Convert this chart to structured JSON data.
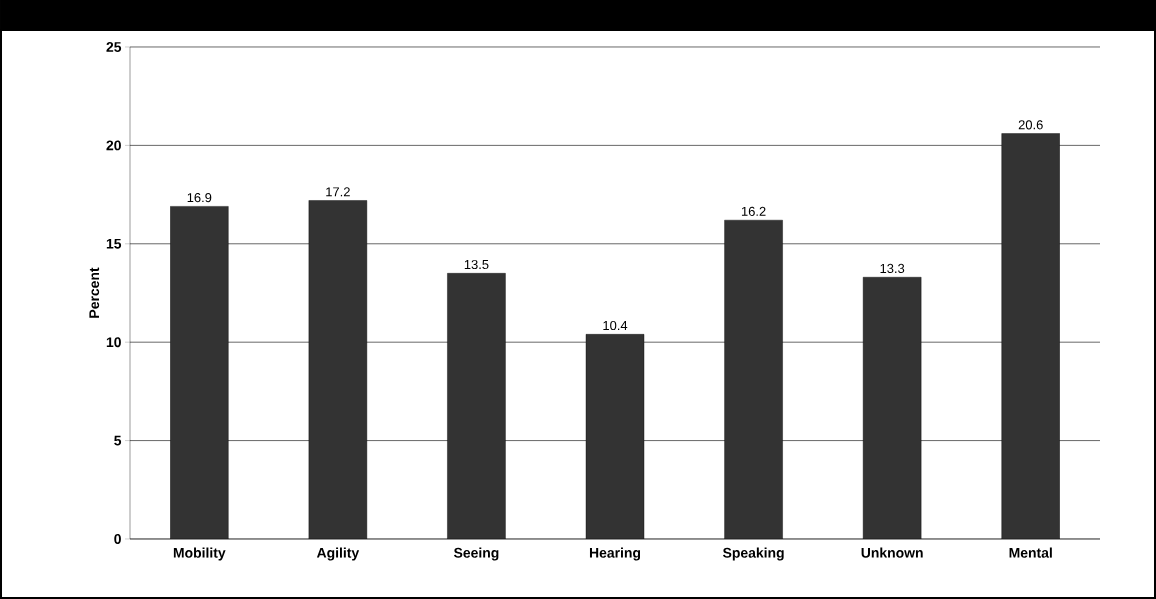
{
  "chart_data": {
    "type": "bar",
    "ylabel": "Percent",
    "categories": [
      "Mobility",
      "Agility",
      "Seeing",
      "Hearing",
      "Speaking",
      "Unknown",
      "Mental"
    ],
    "values": [
      16.9,
      17.2,
      13.5,
      10.4,
      16.2,
      13.3,
      20.6
    ],
    "color": "#333333",
    "ylim": [
      0,
      25
    ],
    "yticks": [
      0,
      5,
      10,
      15,
      20,
      25
    ],
    "grid": "y",
    "data_labels": true
  }
}
